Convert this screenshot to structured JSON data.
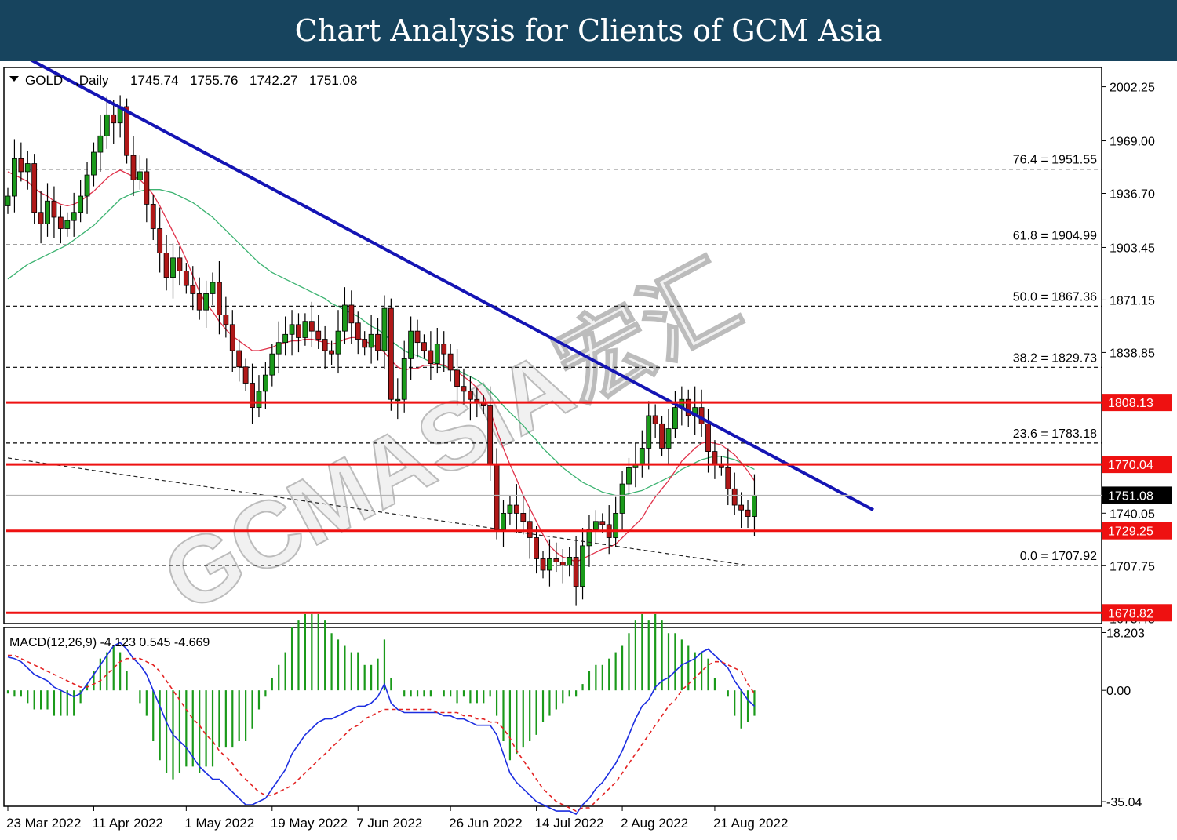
{
  "banner_title": "Chart Analysis for Clients of GCM Asia",
  "watermark": "GCMASIA宏汇",
  "chart_data": {
    "type": "candlestick",
    "symbol": "GOLD",
    "timeframe": ",Daily",
    "ohlc_header": [
      "1745.74",
      "1755.76",
      "1742.27",
      "1751.08"
    ],
    "price_range": [
      1672.2,
      2014.1
    ],
    "price_ticks": [
      "2002.25",
      "1969.00",
      "1936.70",
      "1903.45",
      "1871.15",
      "1838.85",
      "1740.05",
      "1707.75",
      "1675.45"
    ],
    "current_price": {
      "value": 1751.08,
      "label": "1751.08"
    },
    "horizontal_levels": [
      {
        "value": 1808.13,
        "label": "1808.13"
      },
      {
        "value": 1770.04,
        "label": "1770.04"
      },
      {
        "value": 1729.25,
        "label": "1729.25"
      },
      {
        "value": 1678.82,
        "label": "1678.82"
      }
    ],
    "fibonacci": [
      {
        "value": 1951.55,
        "label": "76.4 = 1951.55"
      },
      {
        "value": 1904.99,
        "label": "61.8 = 1904.99"
      },
      {
        "value": 1867.36,
        "label": "50.0 = 1867.36"
      },
      {
        "value": 1829.73,
        "label": "38.2 = 1829.73"
      },
      {
        "value": 1783.18,
        "label": "23.6 = 1783.18"
      },
      {
        "value": 1707.92,
        "label": "0.0 = 1707.92"
      }
    ],
    "downtrend_line": {
      "from": {
        "bar": 2,
        "price": 2022
      },
      "to": {
        "bar": 131,
        "price": 1742
      }
    },
    "support_trend_line": {
      "from": {
        "bar": 0,
        "price": 1774
      },
      "to": {
        "bar": 112,
        "price": 1708
      }
    },
    "x_labels": [
      {
        "bar": 0,
        "label": "23 Mar 2022"
      },
      {
        "bar": 13,
        "label": "11 Apr 2022"
      },
      {
        "bar": 27,
        "label": "1 May 2022"
      },
      {
        "bar": 40,
        "label": "19 May 2022"
      },
      {
        "bar": 53,
        "label": "7 Jun 2022"
      },
      {
        "bar": 67,
        "label": "26 Jun 2022"
      },
      {
        "bar": 80,
        "label": "14 Jul 2022"
      },
      {
        "bar": 93,
        "label": "2 Aug 2022"
      },
      {
        "bar": 107,
        "label": "21 Aug 2022"
      }
    ],
    "closes": [
      1935,
      1958,
      1950,
      1955,
      1925,
      1918,
      1932,
      1922,
      1915,
      1920,
      1925,
      1935,
      1948,
      1962,
      1972,
      1985,
      1980,
      1990,
      1960,
      1945,
      1950,
      1930,
      1915,
      1900,
      1885,
      1897,
      1889,
      1880,
      1875,
      1865,
      1875,
      1882,
      1862,
      1856,
      1840,
      1830,
      1820,
      1805,
      1815,
      1825,
      1838,
      1845,
      1850,
      1856,
      1848,
      1858,
      1852,
      1847,
      1840,
      1838,
      1852,
      1868,
      1857,
      1847,
      1842,
      1850,
      1840,
      1866,
      1810,
      1810,
      1835,
      1852,
      1845,
      1840,
      1832,
      1844,
      1838,
      1828,
      1818,
      1815,
      1810,
      1808,
      1806,
      1770,
      1730,
      1740,
      1745,
      1740,
      1735,
      1725,
      1712,
      1705,
      1712,
      1710,
      1708,
      1713,
      1695,
      1720,
      1730,
      1735,
      1733,
      1725,
      1740,
      1758,
      1768,
      1770,
      1780,
      1800,
      1795,
      1780,
      1792,
      1805,
      1810,
      1800,
      1805,
      1795,
      1778,
      1770,
      1768,
      1755,
      1745,
      1742,
      1738,
      1751
    ],
    "ma_fast": [
      1950,
      1948,
      1946,
      1944,
      1940,
      1937,
      1935,
      1932,
      1930,
      1929,
      1930,
      1932,
      1935,
      1938,
      1942,
      1946,
      1949,
      1951,
      1949,
      1947,
      1945,
      1941,
      1936,
      1929,
      1921,
      1913,
      1905,
      1896,
      1886,
      1876,
      1869,
      1864,
      1858,
      1853,
      1849,
      1846,
      1843,
      1840,
      1840,
      1841,
      1842,
      1844,
      1845,
      1846,
      1846,
      1847,
      1847,
      1846,
      1845,
      1844,
      1845,
      1847,
      1848,
      1848,
      1846,
      1844,
      1842,
      1839,
      1834,
      1830,
      1828,
      1829,
      1829,
      1831,
      1831,
      1832,
      1831,
      1829,
      1827,
      1824,
      1821,
      1817,
      1812,
      1803,
      1791,
      1780,
      1770,
      1761,
      1751,
      1743,
      1735,
      1727,
      1720,
      1716,
      1713,
      1712,
      1710,
      1712,
      1714,
      1716,
      1718,
      1719,
      1721,
      1725,
      1729,
      1733,
      1737,
      1744,
      1750,
      1755,
      1760,
      1766,
      1772,
      1776,
      1780,
      1783,
      1784,
      1783,
      1782,
      1779,
      1776,
      1771,
      1766,
      1760
    ],
    "ma_slow": [
      1884,
      1887,
      1890,
      1893,
      1895,
      1897,
      1899,
      1901,
      1903,
      1905,
      1908,
      1911,
      1914,
      1917,
      1921,
      1925,
      1929,
      1933,
      1935,
      1937,
      1938,
      1939,
      1939,
      1939,
      1938,
      1937,
      1935,
      1933,
      1931,
      1928,
      1925,
      1922,
      1918,
      1914,
      1910,
      1906,
      1902,
      1898,
      1894,
      1891,
      1888,
      1886,
      1884,
      1882,
      1880,
      1878,
      1876,
      1874,
      1872,
      1869,
      1867,
      1865,
      1863,
      1861,
      1858,
      1855,
      1853,
      1850,
      1846,
      1843,
      1840,
      1838,
      1837,
      1835,
      1833,
      1832,
      1830,
      1829,
      1828,
      1826,
      1824,
      1822,
      1819,
      1815,
      1811,
      1806,
      1802,
      1798,
      1794,
      1789,
      1785,
      1780,
      1776,
      1772,
      1768,
      1765,
      1762,
      1759,
      1757,
      1755,
      1753,
      1752,
      1751,
      1751,
      1752,
      1753,
      1754,
      1756,
      1758,
      1760,
      1762,
      1764,
      1767,
      1769,
      1771,
      1773,
      1774,
      1775,
      1775,
      1774,
      1773,
      1771,
      1769,
      1767
    ],
    "macd": {
      "label": "MACD(12,26,9) -4.123 0.545 -4.669",
      "range": [
        -36.5,
        19.8
      ],
      "ticks": [
        "18.203",
        "0.00",
        "-35.04"
      ],
      "macd_line": [
        10.5,
        10,
        9,
        7,
        5,
        4,
        3,
        1,
        0,
        -1,
        -2,
        -1,
        2,
        5,
        8,
        11,
        14,
        15,
        13,
        10,
        8,
        5,
        0,
        -5,
        -10,
        -14,
        -16,
        -18,
        -21,
        -24,
        -26,
        -28,
        -28,
        -30,
        -32,
        -34,
        -36,
        -36,
        -35,
        -34,
        -31,
        -28,
        -25,
        -20,
        -17,
        -14,
        -12,
        -10,
        -9,
        -9,
        -8,
        -7,
        -6,
        -5,
        -5,
        -4,
        -2,
        2,
        -4,
        -6,
        -7,
        -7,
        -7,
        -7,
        -7,
        -7,
        -8,
        -8,
        -9,
        -9,
        -10,
        -11,
        -11,
        -11,
        -14,
        -20,
        -26,
        -29,
        -31,
        -33,
        -35,
        -36,
        -37,
        -38,
        -38,
        -38,
        -39,
        -36,
        -34,
        -31,
        -29,
        -26,
        -23,
        -19,
        -14,
        -9,
        -5,
        -3,
        1,
        3,
        4,
        6,
        8,
        9,
        10,
        12,
        13,
        11,
        9,
        7,
        3,
        0,
        -3,
        -5
      ],
      "signal_line": [
        11,
        11,
        10,
        9,
        8,
        7,
        6,
        5,
        4,
        3,
        2,
        1,
        1,
        2,
        3,
        5,
        7,
        9,
        10,
        10,
        10,
        9,
        8,
        6,
        3,
        0,
        -3,
        -6,
        -9,
        -11,
        -14,
        -16,
        -19,
        -21,
        -23,
        -26,
        -28,
        -30,
        -32,
        -33,
        -33,
        -32,
        -31,
        -30,
        -28,
        -26,
        -24,
        -22,
        -20,
        -18,
        -16,
        -14,
        -12,
        -11,
        -9,
        -8,
        -7,
        -6,
        -6,
        -6,
        -6,
        -6,
        -6,
        -6,
        -6,
        -7,
        -7,
        -7,
        -7,
        -8,
        -8,
        -9,
        -9,
        -10,
        -10,
        -12,
        -15,
        -19,
        -22,
        -25,
        -28,
        -31,
        -33,
        -35,
        -36,
        -37,
        -38,
        -37,
        -37,
        -35,
        -33,
        -31,
        -29,
        -26,
        -23,
        -20,
        -17,
        -14,
        -11,
        -8,
        -5,
        -3,
        0,
        2,
        4,
        6,
        8,
        9,
        9,
        8,
        7,
        6,
        2,
        -1
      ]
    }
  }
}
